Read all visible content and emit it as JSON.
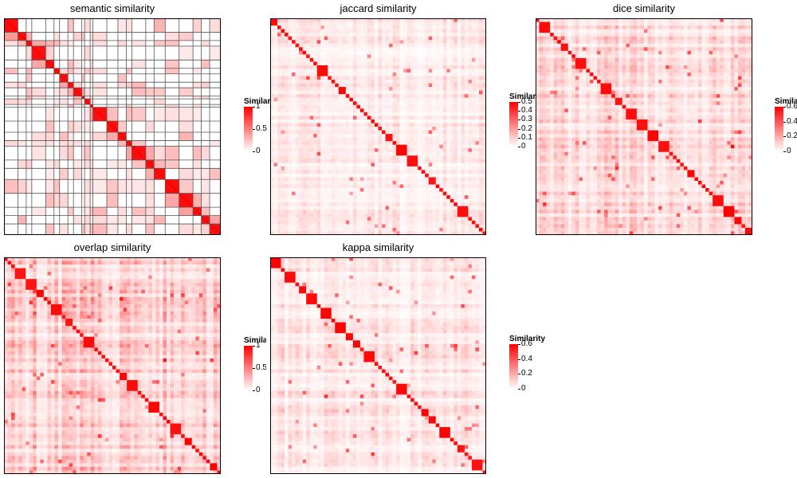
{
  "chart_data": [
    {
      "type": "heatmap",
      "title": "semantic similarity",
      "legend_title": "Similarity",
      "legend_ticks": [
        "1",
        "0.5",
        "0"
      ],
      "colorscale": {
        "low": "#ffffff",
        "high": "#ff0000"
      },
      "vmax": 1,
      "block_sizes": [
        5,
        3,
        2,
        5,
        3,
        2,
        3,
        2,
        3,
        1,
        2,
        1,
        5,
        4,
        3,
        2,
        5,
        3,
        4,
        5,
        5,
        3,
        3,
        4
      ],
      "grid": true
    },
    {
      "type": "heatmap",
      "title": "jaccard similarity",
      "legend_title": "Similarity",
      "legend_ticks": [
        "0.5",
        "0.4",
        "0.3",
        "0.2",
        "0.1",
        "0"
      ],
      "colorscale": {
        "low": "#ffffff",
        "high": "#ff0000"
      },
      "vmax": 0.5,
      "diagonal": "strong",
      "background_level": 0.08
    },
    {
      "type": "heatmap",
      "title": "dice similarity",
      "legend_title": "Similarity",
      "legend_ticks": [
        "0.6",
        "0.4",
        "0.2",
        "0"
      ],
      "colorscale": {
        "low": "#ffffff",
        "high": "#ff0000"
      },
      "vmax": 0.6,
      "diagonal": "strong",
      "background_level": 0.14
    },
    {
      "type": "heatmap",
      "title": "overlap similarity",
      "legend_title": "Similarity",
      "legend_ticks": [
        "1",
        "0.5",
        "0"
      ],
      "colorscale": {
        "low": "#ffffff",
        "high": "#ff0000"
      },
      "vmax": 1,
      "diagonal": "strong",
      "background_level": 0.2
    },
    {
      "type": "heatmap",
      "title": "kappa similarity",
      "legend_title": "Similarity",
      "legend_ticks": [
        "0.6",
        "0.4",
        "0.2",
        "0"
      ],
      "colorscale": {
        "low": "#ffffff",
        "high": "#ff0000"
      },
      "vmax": 0.6,
      "diagonal": "strong",
      "background_level": 0.1
    }
  ]
}
